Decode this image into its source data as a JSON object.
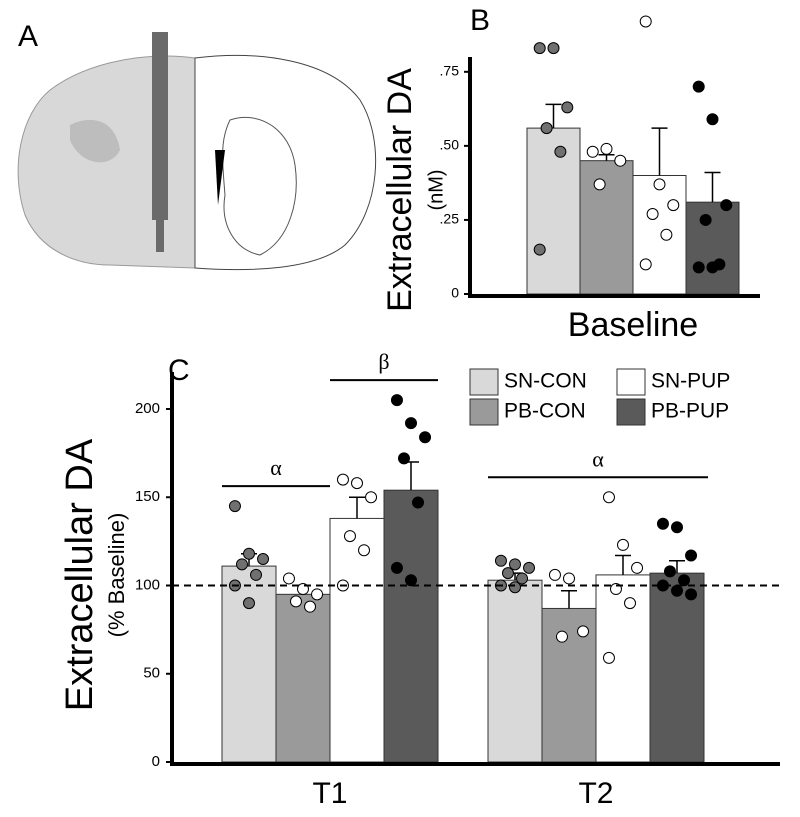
{
  "panel_a": {
    "label": "A"
  },
  "chart_data": [
    {
      "type": "bar",
      "panel_label": "B",
      "y_label": "Extracellular DA",
      "y_sublabel": "(nM)",
      "categories": [
        "Baseline"
      ],
      "ylim": [
        0,
        0.8
      ],
      "yticks": [
        {
          "value": 0,
          "label": "0"
        },
        {
          "value": 0.25,
          "label": ".25"
        },
        {
          "value": 0.5,
          "label": ".50"
        },
        {
          "value": 0.75,
          "label": ".75"
        }
      ],
      "series": [
        {
          "name": "SN-CON",
          "color": "#d9d9d9",
          "dot_color": "#707070",
          "values": [
            0.56
          ],
          "errors": [
            0.08
          ],
          "points": [
            [
              0.83,
              0.83,
              0.63,
              0.56,
              0.48,
              0.15
            ]
          ]
        },
        {
          "name": "PB-CON",
          "color": "#9a9a9a",
          "dot_color": "#ffffff",
          "values": [
            0.45
          ],
          "errors": [
            0.02
          ],
          "points": [
            [
              0.48,
              0.49,
              0.45,
              0.37
            ]
          ]
        },
        {
          "name": "SN-PUP",
          "color": "#ffffff",
          "dot_color": "#ffffff",
          "values": [
            0.4
          ],
          "errors": [
            0.16
          ],
          "points": [
            [
              0.92,
              0.37,
              0.3,
              0.27,
              0.2,
              0.1
            ]
          ]
        },
        {
          "name": "PB-PUP",
          "color": "#5a5a5a",
          "dot_color": "#000000",
          "values": [
            0.31
          ],
          "errors": [
            0.1
          ],
          "points": [
            [
              0.7,
              0.59,
              0.3,
              0.25,
              0.1,
              0.09,
              0.09
            ]
          ]
        }
      ]
    },
    {
      "type": "bar",
      "panel_label": "C",
      "y_label": "Extracellular DA",
      "y_sublabel": "(% Baseline)",
      "categories": [
        "T1",
        "T2"
      ],
      "ylim": [
        0,
        200
      ],
      "yticks": [
        0,
        50,
        100,
        150,
        200
      ],
      "reference_line": 100,
      "legend": "top-right",
      "annotations": [
        {
          "text": "α",
          "category": 0,
          "series": [
            0,
            1
          ]
        },
        {
          "text": "β",
          "category": 0,
          "series": [
            2,
            3
          ]
        },
        {
          "text": "α",
          "category": 1,
          "series": [
            0,
            3
          ]
        }
      ],
      "series": [
        {
          "name": "SN-CON",
          "color": "#d9d9d9",
          "dot_color": "#707070",
          "values": [
            111,
            103
          ],
          "errors": [
            7,
            4
          ],
          "points": [
            [
              145,
              118,
              115,
              112,
              106,
              100,
              90
            ],
            [
              114,
              112,
              110,
              107,
              104,
              100,
              99
            ]
          ]
        },
        {
          "name": "PB-CON",
          "color": "#9a9a9a",
          "dot_color": "#ffffff",
          "values": [
            95,
            87
          ],
          "errors": [
            5,
            10
          ],
          "points": [
            [
              104,
              98,
              95,
              91,
              88
            ],
            [
              106,
              104,
              74,
              71
            ]
          ]
        },
        {
          "name": "SN-PUP",
          "color": "#ffffff",
          "dot_color": "#ffffff",
          "values": [
            138,
            106
          ],
          "errors": [
            12,
            11
          ],
          "points": [
            [
              160,
              158,
              150,
              128,
              120,
              100
            ],
            [
              150,
              123,
              110,
              98,
              90,
              59
            ]
          ]
        },
        {
          "name": "PB-PUP",
          "color": "#5a5a5a",
          "dot_color": "#000000",
          "values": [
            154,
            107
          ],
          "errors": [
            16,
            7
          ],
          "points": [
            [
              205,
              192,
              184,
              172,
              147,
              110,
              103
            ],
            [
              135,
              133,
              117,
              108,
              103,
              100,
              97,
              95
            ]
          ]
        }
      ]
    }
  ]
}
